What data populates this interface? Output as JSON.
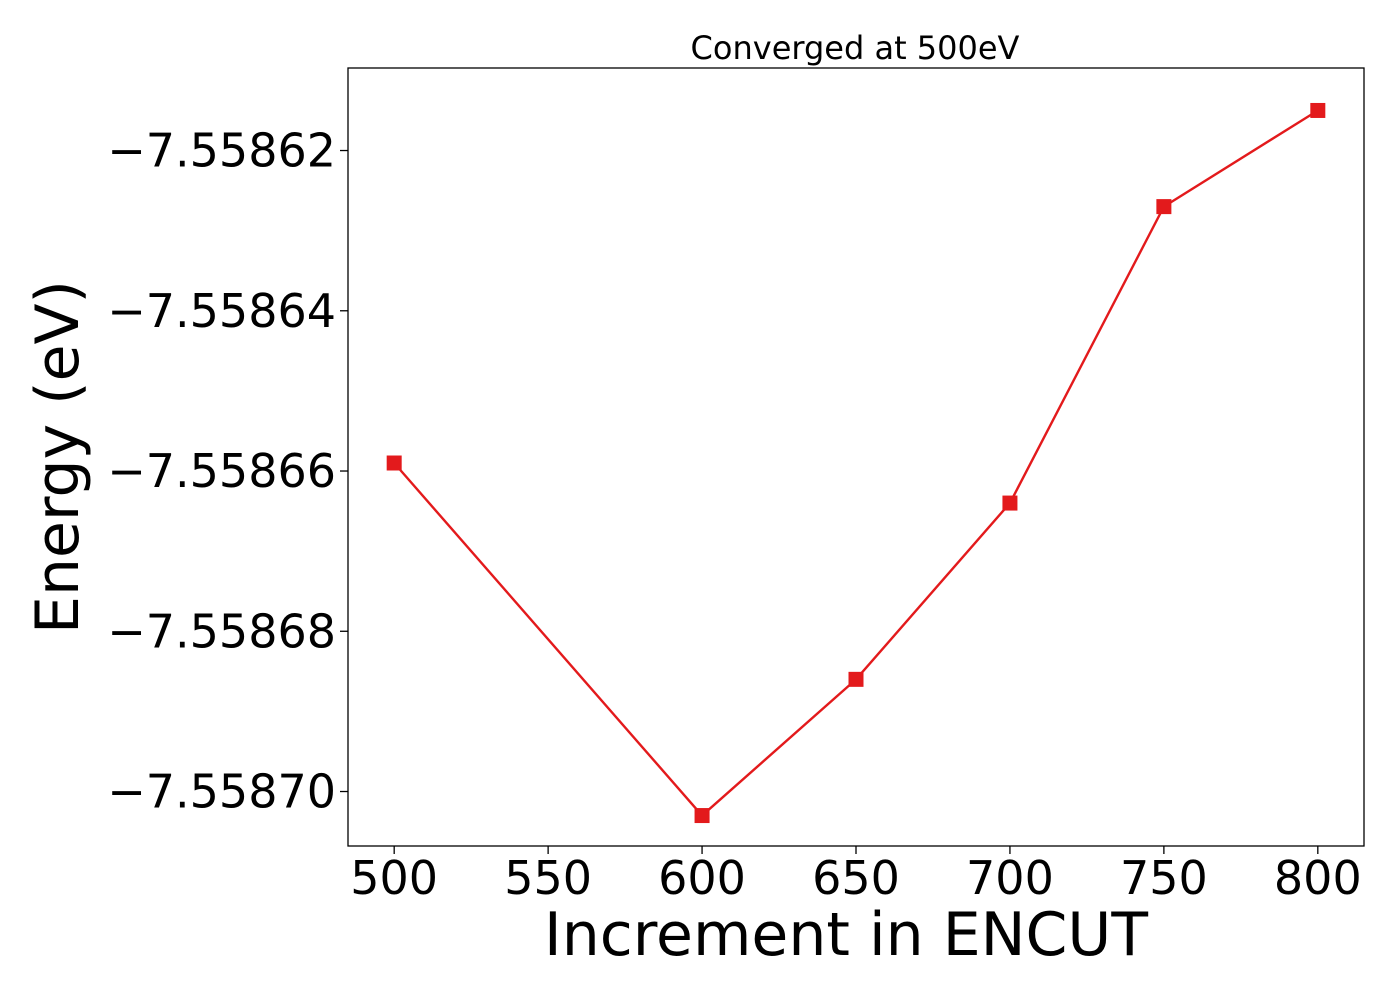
{
  "chart_data": {
    "type": "line",
    "title": "Converged at 500eV",
    "xlabel": "Increment in ENCUT",
    "ylabel": "Energy (eV)",
    "x": [
      500,
      600,
      650,
      700,
      750,
      800
    ],
    "series": [
      {
        "values": [
          -7.558659,
          -7.558703,
          -7.558686,
          -7.558664,
          -7.558627,
          -7.558615
        ],
        "color": "#e31a1c",
        "marker": "square"
      }
    ],
    "xlim": [
      485,
      815
    ],
    "ylim": [
      -7.5587068,
      -7.5586097
    ],
    "xticks": [
      500,
      550,
      600,
      650,
      700,
      750,
      800
    ],
    "xtick_labels": [
      "500",
      "550",
      "600",
      "650",
      "700",
      "750",
      "800"
    ],
    "yticks": [
      -7.5587,
      -7.55868,
      -7.55866,
      -7.55864,
      -7.55862
    ],
    "ytick_labels": [
      "−7.55870",
      "−7.55868",
      "−7.55866",
      "−7.55864",
      "−7.55862"
    ],
    "grid": false,
    "legend": "none"
  }
}
